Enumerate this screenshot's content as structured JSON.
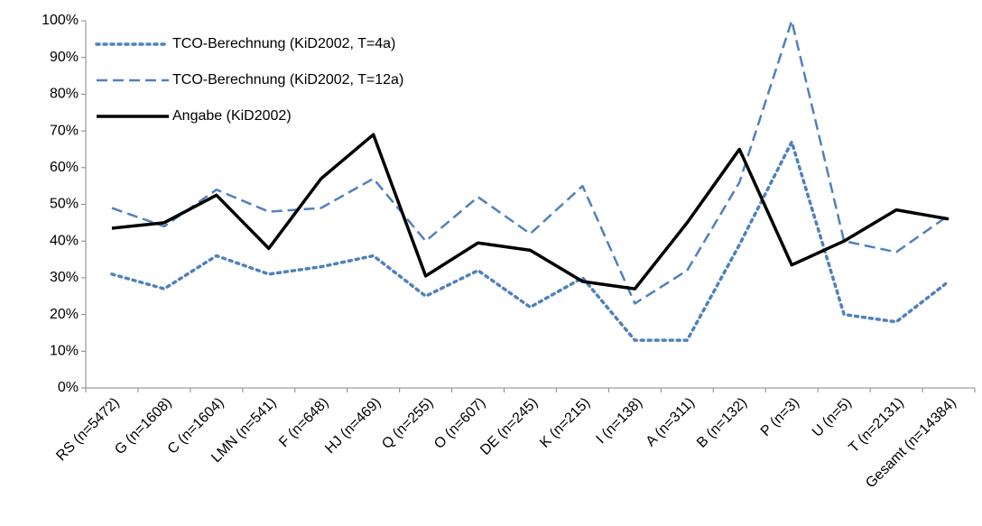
{
  "chart_data": {
    "type": "line",
    "categories": [
      "RS (n=5472)",
      "G (n=1608)",
      "C (n=1604)",
      "LMN (n=541)",
      "F (n=648)",
      "HJ (n=469)",
      "Q (n=255)",
      "O (n=607)",
      "DE (n=245)",
      "K (n=215)",
      "I (n=138)",
      "A (n=311)",
      "B (n=132)",
      "P (n=3)",
      "U (n=5)",
      "T (n=2131)",
      "Gesamt (n=14384)"
    ],
    "series": [
      {
        "name": "TCO-Berechnung (KiD2002, T=4a)",
        "color": "#4f81bd",
        "dash": "dotted",
        "values": [
          31,
          27,
          36,
          31,
          33,
          36,
          25,
          32,
          22,
          30,
          13,
          13,
          39,
          67,
          20,
          18,
          29
        ]
      },
      {
        "name": "TCO-Berechnung (KiD2002, T=12a)",
        "color": "#4f81bd",
        "dash": "dashed",
        "values": [
          49,
          44,
          54,
          48,
          49,
          57,
          40,
          52,
          42,
          55,
          23,
          32,
          56,
          100,
          40,
          37,
          47
        ]
      },
      {
        "name": "Angabe (KiD2002)",
        "color": "#000000",
        "dash": "solid",
        "values": [
          43.5,
          45,
          52.5,
          38,
          57,
          69,
          30.5,
          39.5,
          37.5,
          29,
          27,
          45,
          65,
          33.5,
          40,
          48.5,
          46
        ]
      }
    ],
    "ylim": [
      0,
      100
    ],
    "yticks": [
      {
        "value": 0,
        "label": "0%"
      },
      {
        "value": 10,
        "label": "10%"
      },
      {
        "value": 20,
        "label": "20%"
      },
      {
        "value": 30,
        "label": "30%"
      },
      {
        "value": 40,
        "label": "40%"
      },
      {
        "value": 50,
        "label": "50%"
      },
      {
        "value": 60,
        "label": "60%"
      },
      {
        "value": 70,
        "label": "70%"
      },
      {
        "value": 80,
        "label": "80%"
      },
      {
        "value": 90,
        "label": "90%"
      },
      {
        "value": 100,
        "label": "100%"
      }
    ],
    "grid": false,
    "legend": "upper-left"
  }
}
